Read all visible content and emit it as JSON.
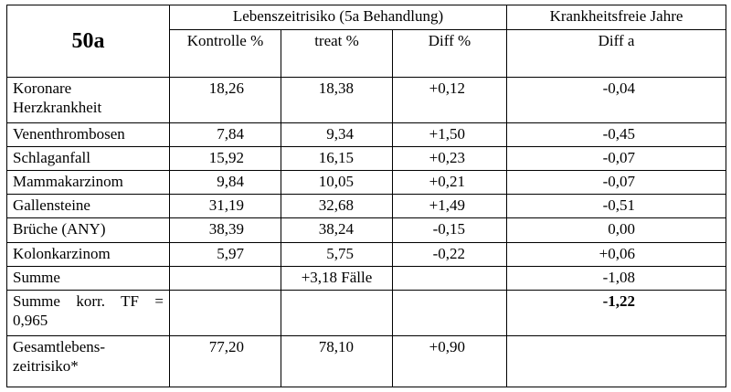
{
  "header": {
    "title": "50a",
    "group_lebenszeit": "Lebenszeitrisiko (5a Behandlung)",
    "group_krankheitsfrei": "Krankheitsfreie Jahre",
    "col_kontrolle": "Kontrolle %",
    "col_treat": "treat %",
    "col_diff_pct": "Diff %",
    "col_diff_a": "Diff a"
  },
  "rows": [
    {
      "label": "Koronare Herzkrankheit",
      "kontrolle": "18,26",
      "treat": "18,38",
      "diff_pct": "+0,12",
      "diff_a": "-0,04"
    },
    {
      "label": "Venenthrombosen",
      "kontrolle": "7,84",
      "treat": "9,34",
      "diff_pct": "+1,50",
      "diff_a": "-0,45"
    },
    {
      "label": "Schlaganfall",
      "kontrolle": "15,92",
      "treat": "16,15",
      "diff_pct": "+0,23",
      "diff_a": "-0,07"
    },
    {
      "label": "Mammakarzinom",
      "kontrolle": "9,84",
      "treat": "10,05",
      "diff_pct": "+0,21",
      "diff_a": "-0,07"
    },
    {
      "label": "Gallensteine",
      "kontrolle": "31,19",
      "treat": "32,68",
      "diff_pct": "+1,49",
      "diff_a": "-0,51"
    },
    {
      "label": "Brüche (ANY)",
      "kontrolle": "38,39",
      "treat": "38,24",
      "diff_pct": "-0,15",
      "diff_a": "0,00"
    },
    {
      "label": "Kolonkarzinom",
      "kontrolle": "5,97",
      "treat": "5,75",
      "diff_pct": "-0,22",
      "diff_a": "+0,06"
    }
  ],
  "summe": {
    "label": "Summe",
    "treat": "+3,18 Fälle",
    "diff_a": "-1,08"
  },
  "summe_korr": {
    "label": "Summe korr. TF = 0,965",
    "diff_a": "-1,22"
  },
  "gesamt": {
    "label": "Gesamtlebens-zeitrisiko*",
    "kontrolle": "77,20",
    "treat": "78,10",
    "diff_pct": "+0,90",
    "diff_a": ""
  }
}
